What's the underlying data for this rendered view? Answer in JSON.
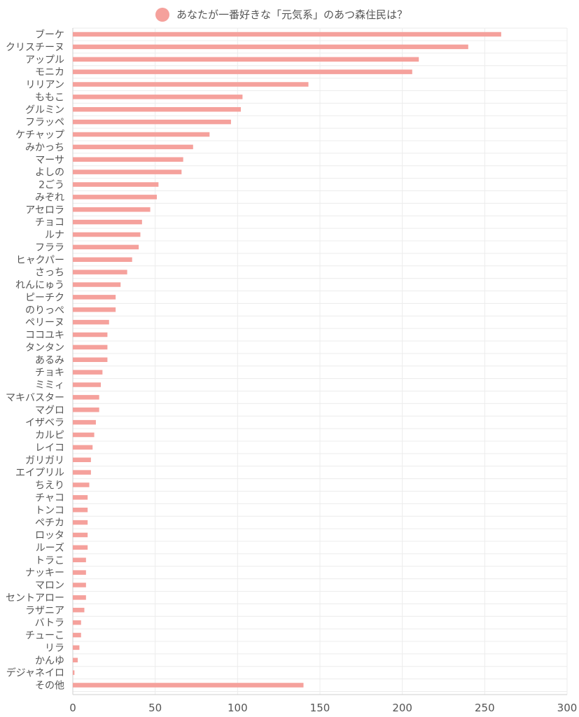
{
  "chart_data": {
    "type": "bar",
    "orientation": "horizontal",
    "categories": [
      "ブーケ",
      "クリスチーヌ",
      "アップル",
      "モニカ",
      "リリアン",
      "ももこ",
      "グルミン",
      "フラッペ",
      "ケチャップ",
      "みかっち",
      "マーサ",
      "よしの",
      "2ごう",
      "みぞれ",
      "アセロラ",
      "チョコ",
      "ルナ",
      "フララ",
      "ヒャクパー",
      "さっち",
      "れんにゅう",
      "ピーチク",
      "のりっぺ",
      "ペリーヌ",
      "ココユキ",
      "タンタン",
      "あるみ",
      "チョキ",
      "ミミィ",
      "マキバスター",
      "マグロ",
      "イザベラ",
      "カルピ",
      "レイコ",
      "ガリガリ",
      "エイプリル",
      "ちえり",
      "チャコ",
      "トンコ",
      "ペチカ",
      "ロッタ",
      "ルーズ",
      "トラこ",
      "ナッキー",
      "マロン",
      "セントアロー",
      "ラザニア",
      "バトラ",
      "チューこ",
      "リラ",
      "かんゆ",
      "デジャネイロ",
      "その他"
    ],
    "series": [
      {
        "name": "あなたが一番好きな「元気系」のあつ森住民は？",
        "color": "#f5a19c",
        "values": [
          260,
          240,
          210,
          206,
          143,
          103,
          102,
          96,
          83,
          73,
          67,
          66,
          52,
          51,
          47,
          42,
          41,
          40,
          36,
          33,
          29,
          26,
          26,
          22,
          21,
          21,
          21,
          18,
          17,
          16,
          16,
          14,
          13,
          12,
          11,
          11,
          10,
          9,
          9,
          9,
          9,
          9,
          8,
          8,
          8,
          8,
          7,
          5,
          5,
          4,
          3,
          1,
          140
        ]
      }
    ],
    "xlim": [
      0,
      300
    ],
    "xticks": [
      "0",
      "50",
      "100",
      "150",
      "200",
      "250",
      "300"
    ],
    "grid": true,
    "legend_position": "top-center"
  }
}
